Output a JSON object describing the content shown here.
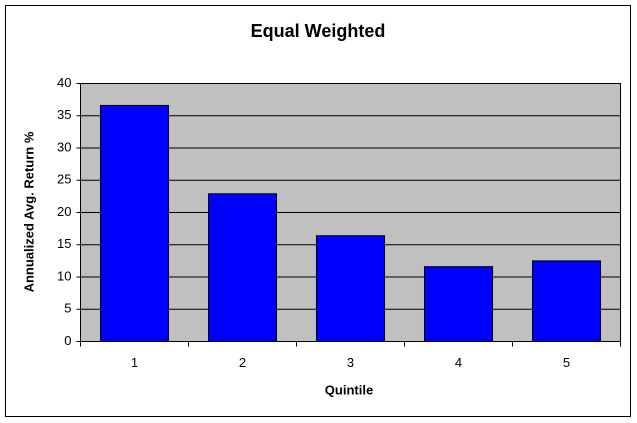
{
  "chart_data": {
    "type": "bar",
    "title": "Equal Weighted",
    "x_label": "Quintile",
    "y_label": "Annualized Avg. Return %",
    "categories": [
      "1",
      "2",
      "3",
      "4",
      "5"
    ],
    "values": [
      36.6,
      22.9,
      16.4,
      11.6,
      12.5
    ],
    "color": "#0000ff",
    "ylim": [
      0,
      40
    ],
    "yticks": [
      0,
      5,
      10,
      15,
      20,
      25,
      30,
      35,
      40
    ],
    "grid": true
  }
}
